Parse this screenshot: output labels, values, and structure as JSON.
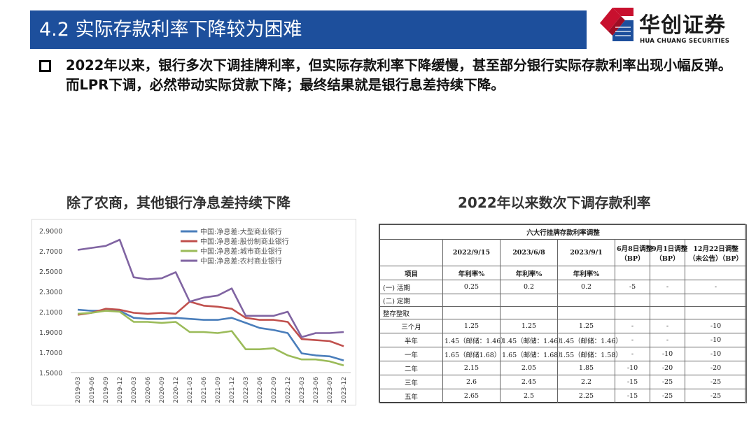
{
  "header": {
    "title": "4.2 实际存款利率下降较为困难",
    "logo_cn": "华创证券",
    "logo_en": "HUA CHUANG SECURITIES"
  },
  "bullet": {
    "text": "2022年以来，银行多次下调挂牌利率，但实际存款利率下降缓慢，甚至部分银行实际存款利率出现小幅反弹。而LPR下调，必然带动实际贷款下降；最终结果就是银行息差持续下降。"
  },
  "left_section_title": "除了农商，其他银行净息差持续下降",
  "right_section_title": "2022年以来数次下调存款利率",
  "colors": {
    "title_bar": "#1d4f9c",
    "series_big": "#4a7ebb",
    "series_joint": "#c0504d",
    "series_city": "#9bbb59",
    "series_rural": "#8064a2"
  },
  "chart_data": {
    "type": "line",
    "x": [
      "2019-03",
      "2019-06",
      "2019-09",
      "2019-12",
      "2020-03",
      "2020-06",
      "2020-09",
      "2020-12",
      "2021-03",
      "2021-06",
      "2021-09",
      "2021-12",
      "2022-03",
      "2022-06",
      "2022-09",
      "2022-12",
      "2023-03",
      "2023-06",
      "2023-09",
      "2023-12"
    ],
    "ylim": [
      1.5,
      2.9
    ],
    "yticks": [
      "2.9000",
      "2.7000",
      "2.5000",
      "2.3000",
      "2.1000",
      "1.9000",
      "1.7000",
      "1.5000"
    ],
    "legend_position": "top-right",
    "series": [
      {
        "name": "中国:净息差:大型商业银行",
        "values": [
          2.12,
          2.11,
          2.11,
          2.11,
          2.04,
          2.03,
          2.03,
          2.04,
          2.03,
          2.02,
          2.02,
          2.04,
          1.99,
          1.94,
          1.92,
          1.89,
          1.69,
          1.67,
          1.66,
          1.62
        ]
      },
      {
        "name": "中国:净息差:股份制商业银行",
        "values": [
          2.07,
          2.09,
          2.13,
          2.12,
          2.09,
          2.08,
          2.09,
          2.08,
          2.2,
          2.16,
          2.15,
          2.13,
          2.04,
          2.02,
          2.02,
          2.0,
          1.83,
          1.82,
          1.81,
          1.76
        ]
      },
      {
        "name": "中国:净息差:城市商业银行",
        "values": [
          2.08,
          2.09,
          2.11,
          2.1,
          2.0,
          2.0,
          1.99,
          2.0,
          1.9,
          1.9,
          1.89,
          1.91,
          1.73,
          1.73,
          1.74,
          1.67,
          1.63,
          1.63,
          1.61,
          1.57
        ]
      },
      {
        "name": "中国:净息差:农村商业银行",
        "values": [
          2.71,
          2.73,
          2.75,
          2.81,
          2.44,
          2.42,
          2.43,
          2.49,
          2.2,
          2.24,
          2.26,
          2.33,
          2.06,
          2.06,
          2.06,
          2.1,
          1.85,
          1.89,
          1.89,
          1.9
        ]
      }
    ]
  },
  "rate_table": {
    "caption": "六大行挂牌存款利率调整",
    "columns": [
      "2022/9/15",
      "2023/6/8",
      "2023/9/1",
      "6月8日调整（BP）",
      "9月1日调整（BP）",
      "12月22日调整（未公告）（BP）"
    ],
    "col_header_lines": [
      [
        "2022/9/15"
      ],
      [
        "2023/6/8"
      ],
      [
        "2023/9/1"
      ],
      [
        "6月8日调整",
        "（BP）"
      ],
      [
        "9月1日调整",
        "（BP）"
      ],
      [
        "12月22日调整",
        "（未公告）（BP）"
      ]
    ],
    "unit_row": [
      "项目",
      "年利率%",
      "年利率%",
      "年利率%",
      "",
      "",
      ""
    ],
    "rows": [
      [
        "(一) 活期",
        "0.25",
        "0.2",
        "0.2",
        "-5",
        "-",
        "-"
      ],
      [
        "(二) 定期",
        "",
        "",
        "",
        "",
        "",
        ""
      ],
      [
        "整存整取",
        "",
        "",
        "",
        "",
        "",
        ""
      ],
      [
        "三个月",
        "1.25",
        "1.25",
        "1.25",
        "-",
        "-",
        "-10"
      ],
      [
        "半年",
        "1.45（邮储：1.46）",
        "1.45（邮储：1.46）",
        "1.45（邮储：1.46）",
        "-",
        "-",
        "-10"
      ],
      [
        "一年",
        "1.65（邮储1.68）",
        "1.65（邮储：1.68）",
        "1.55（邮储：1.58）",
        "-",
        "-10",
        "-10"
      ],
      [
        "二年",
        "2.15",
        "2.05",
        "1.85",
        "-10",
        "-20",
        "-20"
      ],
      [
        "三年",
        "2.6",
        "2.45",
        "2.2",
        "-15",
        "-25",
        "-25"
      ],
      [
        "五年",
        "2.65",
        "2.5",
        "2.25",
        "-15",
        "-25",
        "-25"
      ]
    ]
  }
}
